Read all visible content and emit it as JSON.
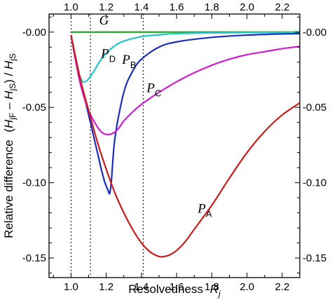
{
  "chart_data": {
    "type": "line",
    "xlabel": "Resolvedness",
    "xlabel_var": "R",
    "xlabel_sub": "j",
    "ylabel_prefix": "Relative difference",
    "ylabel_num_H1": "H",
    "ylabel_num_sub1": "jF",
    "ylabel_num_H2": "H",
    "ylabel_num_sub2": "jS",
    "ylabel_den_H": "H",
    "ylabel_den_sub": "jS",
    "xlim": [
      0.875,
      2.3
    ],
    "ylim": [
      -0.163,
      0.012
    ],
    "x_ticks": [
      1.0,
      1.2,
      1.4,
      1.6,
      1.8,
      2.0,
      2.2
    ],
    "x_tick_labels": [
      "1.0",
      "1.2",
      "1.4",
      "1.6",
      "1.8",
      "2.0",
      "2.2"
    ],
    "y_ticks": [
      0.0,
      -0.05,
      -0.1,
      -0.15
    ],
    "y_tick_labels": [
      "-0.00",
      "-0.05",
      "-0.10",
      "-0.15"
    ],
    "vertical_lines": [
      1.0,
      1.11,
      1.41
    ],
    "series": [
      {
        "name": "G",
        "label_var": "G",
        "label_sub": "",
        "color": "#22aa22",
        "label_at": [
          1.16,
          0.005
        ],
        "x": [
          1.0,
          2.3
        ],
        "y": [
          0.0,
          0.0
        ]
      },
      {
        "name": "PD",
        "label_var": "P",
        "label_sub": "D",
        "color": "#22c8cc",
        "label_at": [
          1.17,
          -0.017
        ],
        "x": [
          1.0,
          1.03,
          1.06,
          1.08,
          1.1,
          1.13,
          1.16,
          1.2,
          1.25,
          1.3,
          1.4,
          1.5,
          1.6,
          1.8,
          2.0,
          2.2,
          2.3
        ],
        "y": [
          -0.002,
          -0.021,
          -0.032,
          -0.033,
          -0.031,
          -0.026,
          -0.02,
          -0.014,
          -0.009,
          -0.006,
          -0.003,
          -0.0018,
          -0.001,
          -0.0005,
          -0.0003,
          -0.0002,
          -0.0001
        ]
      },
      {
        "name": "PB",
        "label_var": "P",
        "label_sub": "B",
        "color": "#1a2fc0",
        "label_at": [
          1.29,
          -0.021
        ],
        "x": [
          1.0,
          1.05,
          1.1,
          1.14,
          1.17,
          1.19,
          1.21,
          1.22,
          1.23,
          1.25,
          1.3,
          1.35,
          1.4,
          1.5,
          1.6,
          1.8,
          2.0,
          2.2,
          2.3
        ],
        "y": [
          -0.002,
          -0.03,
          -0.055,
          -0.075,
          -0.09,
          -0.099,
          -0.105,
          -0.107,
          -0.098,
          -0.07,
          -0.04,
          -0.026,
          -0.018,
          -0.01,
          -0.0065,
          -0.0035,
          -0.002,
          -0.0012,
          -0.001
        ]
      },
      {
        "name": "PC",
        "label_var": "P",
        "label_sub": "C",
        "color": "#d21ed2",
        "label_at": [
          1.43,
          -0.04
        ],
        "x": [
          1.0,
          1.05,
          1.1,
          1.15,
          1.18,
          1.21,
          1.24,
          1.27,
          1.3,
          1.35,
          1.4,
          1.5,
          1.6,
          1.7,
          1.8,
          1.9,
          2.0,
          2.1,
          2.2,
          2.3
        ],
        "y": [
          -0.002,
          -0.033,
          -0.052,
          -0.063,
          -0.067,
          -0.068,
          -0.067,
          -0.064,
          -0.059,
          -0.053,
          -0.048,
          -0.04,
          -0.033,
          -0.027,
          -0.022,
          -0.018,
          -0.015,
          -0.013,
          -0.011,
          -0.0095
        ]
      },
      {
        "name": "PA",
        "label_var": "P",
        "label_sub": "A",
        "color": "#cc1a1a",
        "label_at": [
          1.72,
          -0.12
        ],
        "x": [
          1.0,
          1.05,
          1.1,
          1.15,
          1.2,
          1.25,
          1.3,
          1.35,
          1.4,
          1.45,
          1.5,
          1.53,
          1.56,
          1.6,
          1.65,
          1.7,
          1.8,
          1.9,
          2.0,
          2.1,
          2.2,
          2.3
        ],
        "y": [
          -0.002,
          -0.03,
          -0.052,
          -0.073,
          -0.091,
          -0.107,
          -0.12,
          -0.131,
          -0.14,
          -0.146,
          -0.149,
          -0.149,
          -0.148,
          -0.145,
          -0.139,
          -0.131,
          -0.115,
          -0.097,
          -0.08,
          -0.066,
          -0.055,
          -0.047
        ]
      }
    ]
  }
}
